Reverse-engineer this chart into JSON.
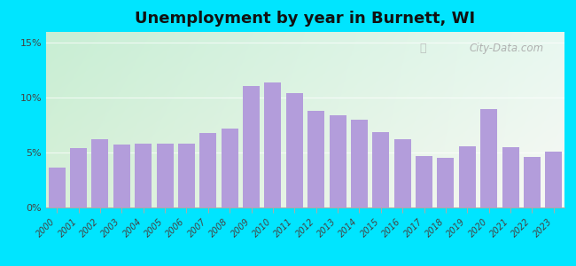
{
  "title": "Unemployment by year in Burnett, WI",
  "years": [
    2000,
    2001,
    2002,
    2003,
    2004,
    2005,
    2006,
    2007,
    2008,
    2009,
    2010,
    2011,
    2012,
    2013,
    2014,
    2015,
    2016,
    2017,
    2018,
    2019,
    2020,
    2021,
    2022,
    2023
  ],
  "values": [
    3.6,
    5.4,
    6.2,
    5.7,
    5.8,
    5.8,
    5.8,
    6.8,
    7.2,
    11.1,
    11.4,
    10.4,
    8.8,
    8.4,
    8.0,
    6.9,
    6.2,
    4.7,
    4.5,
    5.6,
    9.0,
    5.5,
    4.6,
    5.1
  ],
  "bar_color": "#b39ddb",
  "bg_outer": "#00e5ff",
  "bg_gradient_top_left": "#b2dfdb",
  "bg_gradient_bottom_right": "#f5f5f0",
  "yticks": [
    0,
    5,
    10,
    15
  ],
  "ytick_labels": [
    "0%",
    "5%",
    "10%",
    "15%"
  ],
  "ylim": [
    0,
    16
  ],
  "title_fontsize": 13,
  "watermark": "City-Data.com"
}
